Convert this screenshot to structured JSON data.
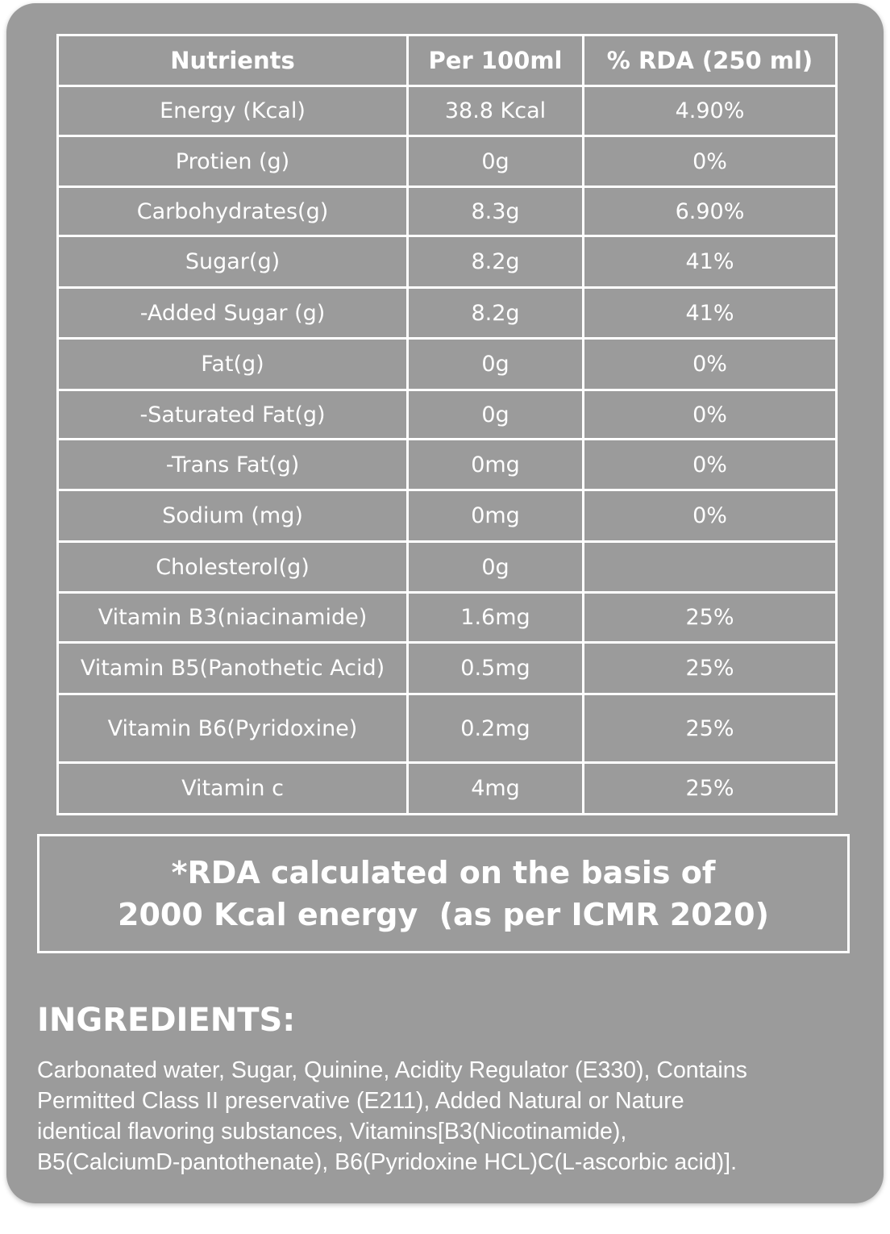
{
  "table": {
    "headers": [
      "Nutrients",
      "Per 100ml",
      "% RDA (250 ml)"
    ],
    "rows": [
      {
        "nutrient": "Energy (Kcal)",
        "per100": "38.8 Kcal",
        "rda": "4.90%"
      },
      {
        "nutrient": "Protien (g)",
        "per100": "0g",
        "rda": "0%"
      },
      {
        "nutrient": "Carbohydrates(g)",
        "per100": "8.3g",
        "rda": "6.90%"
      },
      {
        "nutrient": "Sugar(g)",
        "per100": "8.2g",
        "rda": "41%"
      },
      {
        "nutrient": "-Added Sugar (g)",
        "per100": "8.2g",
        "rda": "41%"
      },
      {
        "nutrient": "Fat(g)",
        "per100": "0g",
        "rda": "0%"
      },
      {
        "nutrient": "-Saturated Fat(g)",
        "per100": "0g",
        "rda": "0%"
      },
      {
        "nutrient": "-Trans Fat(g)",
        "per100": "0mg",
        "rda": "0%"
      },
      {
        "nutrient": "Sodium (mg)",
        "per100": "0mg",
        "rda": "0%"
      },
      {
        "nutrient": "Cholesterol(g)",
        "per100": "0g",
        "rda": ""
      },
      {
        "nutrient": "Vitamin B3(niacinamide)",
        "per100": "1.6mg",
        "rda": "25%"
      },
      {
        "nutrient": "Vitamin B5(Panothetic Acid)",
        "per100": "0.5mg",
        "rda": "25%"
      },
      {
        "nutrient": "Vitamin B6(Pyridoxine)",
        "per100": "0.2mg",
        "rda": "25%"
      },
      {
        "nutrient": "Vitamin c",
        "per100": "4mg",
        "rda": "25%"
      }
    ]
  },
  "rda_note": {
    "line1": "*RDA calculated on the basis of",
    "line2": "2000 Kcal energy  (as per ICMR 2020)"
  },
  "ingredients": {
    "heading": "INGREDIENTS:",
    "lines": [
      "Carbonated water, Sugar, Quinine, Acidity Regulator (E330), Contains",
      "Permitted Class II preservative (E211), Added Natural or Nature",
      "identical flavoring substances, Vitamins[B3(Nicotinamide),",
      "B5(CalciumD-pantothenate), B6(Pyridoxine HCL)C(L-ascorbic acid)]."
    ]
  },
  "colors": {
    "card_background": "#9b9b9b",
    "foreground": "#ffffff"
  }
}
